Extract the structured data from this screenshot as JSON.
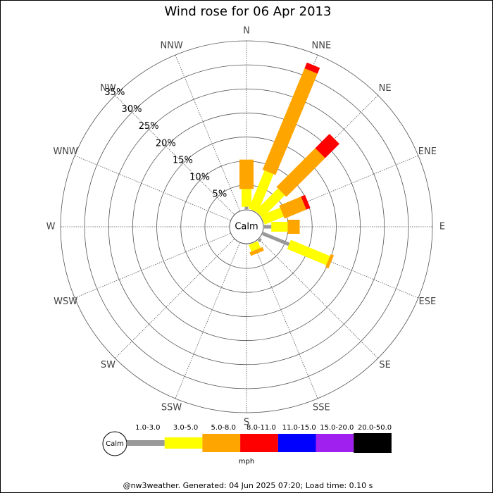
{
  "chart_data": {
    "type": "windrose",
    "title": "Wind rose for 06 Apr 2013",
    "center_label": "Calm",
    "unit": "mph",
    "footer": "@nw3weather. Generated: 04 Jun 2025 07:20; Load time: 0.10 s",
    "categories": [
      "N",
      "NNE",
      "NE",
      "ENE",
      "E",
      "ESE",
      "SE",
      "SSE",
      "S",
      "SSW",
      "SW",
      "WSW",
      "W",
      "WNW",
      "NW",
      "NNW"
    ],
    "rlim": [
      0,
      35
    ],
    "rticks": [
      {
        "value": 5,
        "label": "5%"
      },
      {
        "value": 10,
        "label": "10%"
      },
      {
        "value": 15,
        "label": "15%"
      },
      {
        "value": 20,
        "label": "20%"
      },
      {
        "value": 25,
        "label": "25%"
      },
      {
        "value": 30,
        "label": "30%"
      },
      {
        "value": 35,
        "label": "35%"
      }
    ],
    "series": [
      {
        "name": "1.0-3.0",
        "color": "#999999",
        "values": [
          0.5,
          0,
          0,
          0,
          1.5,
          5.9,
          0.5,
          0,
          0,
          0,
          0,
          0,
          0,
          0,
          0,
          0
        ]
      },
      {
        "name": "3.0-5.0",
        "color": "#ffff00",
        "values": [
          3.7,
          8.6,
          6.6,
          4.3,
          3.4,
          8.8,
          0,
          1.5,
          0,
          0,
          0,
          0,
          0,
          0,
          0,
          0
        ]
      },
      {
        "name": "5.0-8.0",
        "color": "#ffa500",
        "values": [
          6.1,
          22.8,
          11.4,
          4.9,
          2.5,
          0.7,
          0,
          0.8,
          0,
          0,
          0,
          0,
          0,
          0,
          0,
          0
        ]
      },
      {
        "name": "8.0-11.0",
        "color": "#ff0000",
        "values": [
          0,
          1.3,
          4.2,
          0.9,
          0,
          0,
          0,
          0,
          0,
          0,
          0,
          0,
          0,
          0,
          0,
          0
        ]
      },
      {
        "name": "11.0-15.0",
        "color": "#0000ff",
        "values": [
          0,
          0,
          0,
          0,
          0,
          0,
          0,
          0,
          0,
          0,
          0,
          0,
          0,
          0,
          0,
          0
        ]
      },
      {
        "name": "15.0-20.0",
        "color": "#a020f0",
        "values": [
          0,
          0,
          0,
          0,
          0,
          0,
          0,
          0,
          0,
          0,
          0,
          0,
          0,
          0,
          0,
          0
        ]
      },
      {
        "name": "20.0-50.0",
        "color": "#000000",
        "values": [
          0,
          0,
          0,
          0,
          0,
          0,
          0,
          0,
          0,
          0,
          0,
          0,
          0,
          0,
          0,
          0
        ]
      }
    ]
  }
}
